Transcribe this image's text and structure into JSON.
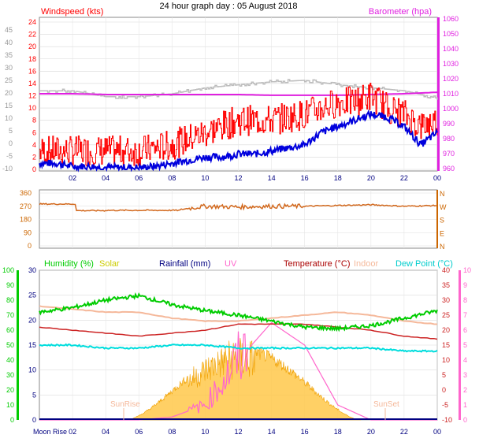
{
  "title": "24 hour graph day : 05 August 2018",
  "x_ticks": [
    "02",
    "04",
    "06",
    "08",
    "10",
    "12",
    "14",
    "16",
    "18",
    "20",
    "22",
    "00"
  ],
  "panel1": {
    "left_label": "Windspeed (kts)",
    "right_label": "Barometer (hpa)",
    "left_ticks_kts": [
      "0",
      "2",
      "4",
      "6",
      "8",
      "10",
      "12",
      "14",
      "16",
      "18",
      "20",
      "22",
      "24"
    ],
    "left_ticks_outer": [
      "-10",
      "-5",
      "0",
      "5",
      "10",
      "15",
      "20",
      "25",
      "30",
      "35",
      "40",
      "45"
    ],
    "right_ticks": [
      "960",
      "970",
      "980",
      "990",
      "1000",
      "1010",
      "1020",
      "1030",
      "1040",
      "1050",
      "1060"
    ]
  },
  "panel2": {
    "left_ticks": [
      "0",
      "90",
      "180",
      "270",
      "360"
    ],
    "right_ticks": [
      "N",
      "E",
      "S",
      "W",
      "N"
    ]
  },
  "panel3": {
    "legend": {
      "humidity": "Humidity (%)",
      "solar": "Solar",
      "rainfall": "Rainfall (mm)",
      "uv": "UV",
      "temperature": "Temperature (°C)",
      "indoor": "Indoor",
      "dewpoint": "Dew Point (°C)"
    },
    "humidity_ticks": [
      "0",
      "10",
      "20",
      "30",
      "40",
      "50",
      "60",
      "70",
      "80",
      "90",
      "100"
    ],
    "rain_ticks": [
      "0",
      "5",
      "10",
      "15",
      "20",
      "25",
      "30"
    ],
    "temp_ticks": [
      "-10",
      "-5",
      "0",
      "5",
      "10",
      "15",
      "20",
      "25",
      "30",
      "35",
      "40"
    ],
    "uv_ticks": [
      "0",
      "1",
      "2",
      "3",
      "4",
      "5",
      "6",
      "7",
      "8",
      "9",
      "10"
    ],
    "annotations": {
      "sunrise": "SunRise",
      "sunset": "SunSet",
      "moonrise": "Moon Rise"
    }
  },
  "colors": {
    "wind_avg": "#0000dd",
    "wind_gust": "#ff0000",
    "barometer": "#e020e0",
    "wind_dir": "#d2691e",
    "humidity": "#00cc00",
    "solar": "#ffb020",
    "rain": "#000080",
    "uv": "#ff66cc",
    "temperature": "#cc2222",
    "indoor": "#f5b89a",
    "dewpoint": "#00dddd",
    "orange": "#cc6600"
  },
  "chart_data": [
    {
      "type": "line",
      "x": [
        0,
        1,
        2,
        3,
        4,
        5,
        6,
        7,
        8,
        9,
        10,
        11,
        12,
        13,
        14,
        15,
        16,
        17,
        18,
        19,
        20,
        21,
        22,
        23,
        24
      ],
      "series": [
        {
          "values": [
            1,
            1,
            0.5,
            0.5,
            0.3,
            0.3,
            0.3,
            0.5,
            1,
            1.5,
            2,
            2,
            2.5,
            2.5,
            3,
            3.5,
            4,
            6,
            7,
            8,
            9,
            8.5,
            7,
            4,
            6
          ]
        },
        {
          "values": [
            3,
            3,
            3,
            3,
            3,
            3,
            3,
            3.5,
            4,
            5,
            6,
            7,
            8,
            8,
            8,
            8.5,
            9,
            10,
            11,
            11,
            12,
            10,
            9,
            7,
            8
          ]
        }
      ]
    },
    {
      "type": "line",
      "x": [
        0,
        2,
        4,
        6,
        8,
        10,
        12,
        14,
        16,
        18,
        20,
        22,
        24
      ],
      "series": [
        {
          "values": [
            1010,
            1010,
            1009.5,
            1009.5,
            1009.5,
            1009.5,
            1009.5,
            1009,
            1009,
            1009,
            1009.5,
            1010,
            1011
          ]
        }
      ]
    },
    {
      "type": "scatter",
      "x": [
        0,
        2,
        4,
        6,
        8,
        10,
        12,
        14,
        16,
        18,
        20,
        22,
        24
      ],
      "series": [
        {
          "values": [
            280,
            240,
            240,
            240,
            240,
            270,
            265,
            270,
            270,
            275,
            280,
            270,
            275
          ]
        }
      ]
    },
    {
      "type": "line",
      "x": [
        0,
        2,
        4,
        6,
        8,
        10,
        12,
        14,
        16,
        18,
        20,
        22,
        24
      ],
      "series": [
        {
          "values": [
            72,
            75,
            80,
            83,
            77,
            73,
            70,
            66,
            62,
            61,
            63,
            68,
            73
          ]
        },
        {
          "values": [
            21,
            20,
            19,
            19,
            18,
            18,
            18,
            18,
            18,
            18,
            17,
            16,
            14
          ]
        },
        {
          "values": [
            28,
            27,
            26,
            26,
            24,
            23,
            23,
            24,
            25,
            26,
            25,
            23,
            22
          ]
        },
        {
          "values": [
            21,
            20,
            19,
            18,
            19,
            20,
            22,
            22,
            22,
            21,
            20,
            18,
            17
          ]
        },
        {
          "values": [
            15,
            15,
            14,
            14,
            15,
            15,
            14,
            14,
            14,
            14,
            14,
            13,
            13
          ]
        },
        {
          "values": [
            0,
            0,
            0,
            0,
            0.2,
            1,
            4,
            6.5,
            5,
            1,
            0,
            0,
            0
          ]
        },
        {
          "values": [
            0,
            0,
            0,
            0,
            0,
            0,
            0,
            0,
            0,
            0,
            0,
            0,
            0
          ]
        }
      ]
    }
  ]
}
